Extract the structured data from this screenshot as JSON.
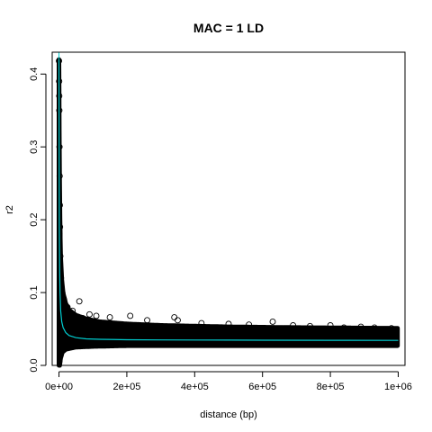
{
  "chart_data": {
    "type": "scatter",
    "title": "MAC = 1 LD",
    "xlabel": "distance (bp)",
    "ylabel": "r2",
    "xlim": [
      -20000,
      1020000
    ],
    "ylim": [
      0,
      0.43
    ],
    "x_ticks": [
      0,
      200000,
      400000,
      600000,
      800000,
      1000000
    ],
    "x_tick_labels": [
      "0e+00",
      "2e+05",
      "4e+05",
      "6e+05",
      "8e+05",
      "1e+06"
    ],
    "y_ticks": [
      0.0,
      0.1,
      0.2,
      0.3,
      0.4
    ],
    "y_tick_labels": [
      "0.0",
      "0.1",
      "0.2",
      "0.3",
      "0.4"
    ],
    "point_color": "#000000",
    "fit_color": "#00CED1",
    "fit_curve": {
      "name": "",
      "x": [
        0,
        1000,
        2000,
        3000,
        5000,
        8000,
        12000,
        20000,
        30000,
        50000,
        80000,
        120000,
        200000,
        300000,
        400000,
        600000,
        800000,
        1000000
      ],
      "y": [
        0.42,
        0.19,
        0.13,
        0.1,
        0.075,
        0.06,
        0.052,
        0.045,
        0.041,
        0.038,
        0.0365,
        0.0358,
        0.0352,
        0.035,
        0.0348,
        0.0346,
        0.0345,
        0.0344
      ]
    },
    "upper_envelope": {
      "x": [
        0,
        500,
        1000,
        2000,
        3000,
        5000,
        8000,
        12000,
        20000,
        30000,
        50000,
        80000,
        120000,
        200000,
        300000,
        500000,
        700000,
        1000000
      ],
      "y": [
        0.42,
        0.38,
        0.32,
        0.25,
        0.2,
        0.15,
        0.12,
        0.1,
        0.085,
        0.076,
        0.069,
        0.064,
        0.06,
        0.057,
        0.055,
        0.053,
        0.052,
        0.051
      ]
    },
    "lower_envelope": {
      "x": [
        0,
        2000,
        5000,
        10000,
        20000,
        50000,
        100000,
        200000,
        400000,
        600000,
        800000,
        1000000
      ],
      "y": [
        0.0,
        0.0,
        0.01,
        0.018,
        0.022,
        0.025,
        0.026,
        0.027,
        0.027,
        0.027,
        0.027,
        0.027
      ]
    },
    "outliers": {
      "x": [
        0,
        500,
        800,
        1000,
        1500,
        2000,
        2500,
        3000,
        4000,
        6000,
        10000,
        15000,
        25000,
        40000,
        60000,
        70000,
        90000,
        110000,
        150000,
        210000,
        260000,
        340000,
        350000,
        420000,
        500000,
        560000,
        630000,
        690000,
        740000,
        800000,
        840000,
        890000,
        930000,
        980000
      ],
      "y": [
        0.418,
        0.39,
        0.37,
        0.35,
        0.3,
        0.26,
        0.22,
        0.19,
        0.15,
        0.12,
        0.1,
        0.09,
        0.08,
        0.075,
        0.088,
        0.065,
        0.07,
        0.068,
        0.066,
        0.068,
        0.062,
        0.066,
        0.062,
        0.058,
        0.057,
        0.056,
        0.06,
        0.055,
        0.054,
        0.055,
        0.052,
        0.053,
        0.052,
        0.051
      ]
    }
  }
}
